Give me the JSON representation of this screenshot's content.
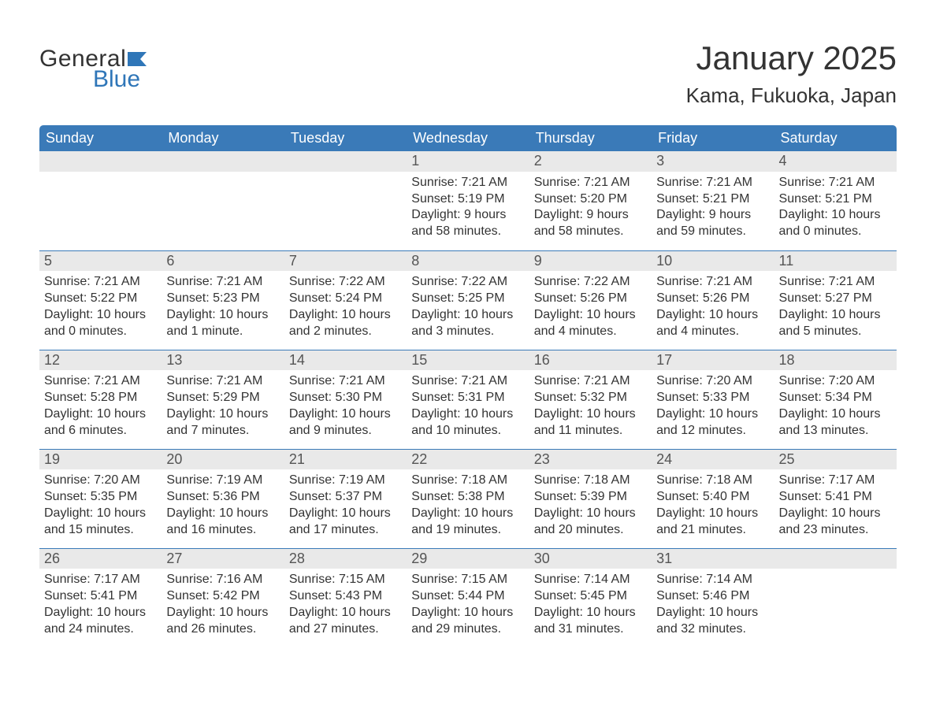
{
  "logo": {
    "text1": "General",
    "text2": "Blue",
    "color1": "#333333",
    "color2": "#2f76b8"
  },
  "title": "January 2025",
  "location": "Kama, Fukuoka, Japan",
  "colors": {
    "header_bg": "#3a7ab8",
    "header_fg": "#ffffff",
    "daynum_bg": "#e9e9e9",
    "daynum_fg": "#555555",
    "body_fg": "#333333",
    "row_border": "#3a7ab8",
    "page_bg": "#ffffff"
  },
  "fonts": {
    "title_size": 42,
    "location_size": 26,
    "header_size": 18,
    "daynum_size": 18,
    "body_size": 16
  },
  "weekdays": [
    "Sunday",
    "Monday",
    "Tuesday",
    "Wednesday",
    "Thursday",
    "Friday",
    "Saturday"
  ],
  "month": {
    "year": 2025,
    "month": 1,
    "first_weekday_index": 3,
    "days_in_month": 31,
    "weeks": 5
  },
  "labels": {
    "sunrise": "Sunrise",
    "sunset": "Sunset",
    "daylight": "Daylight"
  },
  "days": {
    "1": {
      "sunrise": "7:21 AM",
      "sunset": "5:19 PM",
      "daylight": "9 hours and 58 minutes."
    },
    "2": {
      "sunrise": "7:21 AM",
      "sunset": "5:20 PM",
      "daylight": "9 hours and 58 minutes."
    },
    "3": {
      "sunrise": "7:21 AM",
      "sunset": "5:21 PM",
      "daylight": "9 hours and 59 minutes."
    },
    "4": {
      "sunrise": "7:21 AM",
      "sunset": "5:21 PM",
      "daylight": "10 hours and 0 minutes."
    },
    "5": {
      "sunrise": "7:21 AM",
      "sunset": "5:22 PM",
      "daylight": "10 hours and 0 minutes."
    },
    "6": {
      "sunrise": "7:21 AM",
      "sunset": "5:23 PM",
      "daylight": "10 hours and 1 minute."
    },
    "7": {
      "sunrise": "7:22 AM",
      "sunset": "5:24 PM",
      "daylight": "10 hours and 2 minutes."
    },
    "8": {
      "sunrise": "7:22 AM",
      "sunset": "5:25 PM",
      "daylight": "10 hours and 3 minutes."
    },
    "9": {
      "sunrise": "7:22 AM",
      "sunset": "5:26 PM",
      "daylight": "10 hours and 4 minutes."
    },
    "10": {
      "sunrise": "7:21 AM",
      "sunset": "5:26 PM",
      "daylight": "10 hours and 4 minutes."
    },
    "11": {
      "sunrise": "7:21 AM",
      "sunset": "5:27 PM",
      "daylight": "10 hours and 5 minutes."
    },
    "12": {
      "sunrise": "7:21 AM",
      "sunset": "5:28 PM",
      "daylight": "10 hours and 6 minutes."
    },
    "13": {
      "sunrise": "7:21 AM",
      "sunset": "5:29 PM",
      "daylight": "10 hours and 7 minutes."
    },
    "14": {
      "sunrise": "7:21 AM",
      "sunset": "5:30 PM",
      "daylight": "10 hours and 9 minutes."
    },
    "15": {
      "sunrise": "7:21 AM",
      "sunset": "5:31 PM",
      "daylight": "10 hours and 10 minutes."
    },
    "16": {
      "sunrise": "7:21 AM",
      "sunset": "5:32 PM",
      "daylight": "10 hours and 11 minutes."
    },
    "17": {
      "sunrise": "7:20 AM",
      "sunset": "5:33 PM",
      "daylight": "10 hours and 12 minutes."
    },
    "18": {
      "sunrise": "7:20 AM",
      "sunset": "5:34 PM",
      "daylight": "10 hours and 13 minutes."
    },
    "19": {
      "sunrise": "7:20 AM",
      "sunset": "5:35 PM",
      "daylight": "10 hours and 15 minutes."
    },
    "20": {
      "sunrise": "7:19 AM",
      "sunset": "5:36 PM",
      "daylight": "10 hours and 16 minutes."
    },
    "21": {
      "sunrise": "7:19 AM",
      "sunset": "5:37 PM",
      "daylight": "10 hours and 17 minutes."
    },
    "22": {
      "sunrise": "7:18 AM",
      "sunset": "5:38 PM",
      "daylight": "10 hours and 19 minutes."
    },
    "23": {
      "sunrise": "7:18 AM",
      "sunset": "5:39 PM",
      "daylight": "10 hours and 20 minutes."
    },
    "24": {
      "sunrise": "7:18 AM",
      "sunset": "5:40 PM",
      "daylight": "10 hours and 21 minutes."
    },
    "25": {
      "sunrise": "7:17 AM",
      "sunset": "5:41 PM",
      "daylight": "10 hours and 23 minutes."
    },
    "26": {
      "sunrise": "7:17 AM",
      "sunset": "5:41 PM",
      "daylight": "10 hours and 24 minutes."
    },
    "27": {
      "sunrise": "7:16 AM",
      "sunset": "5:42 PM",
      "daylight": "10 hours and 26 minutes."
    },
    "28": {
      "sunrise": "7:15 AM",
      "sunset": "5:43 PM",
      "daylight": "10 hours and 27 minutes."
    },
    "29": {
      "sunrise": "7:15 AM",
      "sunset": "5:44 PM",
      "daylight": "10 hours and 29 minutes."
    },
    "30": {
      "sunrise": "7:14 AM",
      "sunset": "5:45 PM",
      "daylight": "10 hours and 31 minutes."
    },
    "31": {
      "sunrise": "7:14 AM",
      "sunset": "5:46 PM",
      "daylight": "10 hours and 32 minutes."
    }
  }
}
